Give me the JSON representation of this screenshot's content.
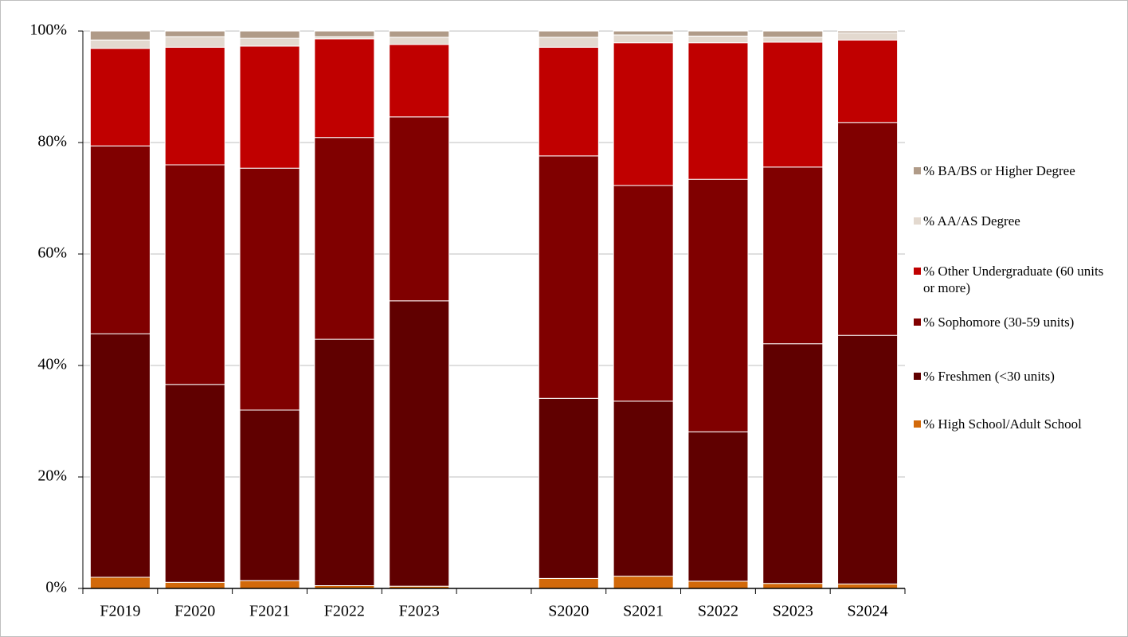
{
  "chart_data": {
    "type": "stacked_bar",
    "categories": [
      "F2019",
      "F2020",
      "F2021",
      "F2022",
      "F2023",
      null,
      "S2020",
      "S2021",
      "S2022",
      "S2023",
      "S2024"
    ],
    "series": [
      {
        "name": "% High School/Adult School",
        "color": "#d2690a",
        "values": [
          2.0,
          1.1,
          1.4,
          0.5,
          0.4,
          null,
          1.8,
          2.2,
          1.3,
          0.9,
          0.8
        ]
      },
      {
        "name": "% Freshmen (<30 units)",
        "color": "#600000",
        "values": [
          43.7,
          35.5,
          30.6,
          44.2,
          51.2,
          null,
          32.3,
          31.4,
          26.8,
          43.0,
          44.6
        ]
      },
      {
        "name": "% Sophomore (30-59 units)",
        "color": "#800000",
        "values": [
          33.7,
          39.4,
          43.4,
          36.2,
          33.0,
          null,
          43.5,
          38.7,
          45.3,
          31.7,
          38.2
        ]
      },
      {
        "name": "% Other Undergraduate (60 units or more)",
        "color": "#c00000",
        "values": [
          17.5,
          21.1,
          21.9,
          17.7,
          13.0,
          null,
          19.5,
          25.6,
          24.5,
          22.4,
          14.8
        ]
      },
      {
        "name": "% AA/AS Degree",
        "color": "#e3d9cf",
        "values": [
          1.5,
          1.9,
          1.4,
          0.4,
          1.3,
          null,
          1.8,
          1.4,
          1.2,
          0.9,
          1.3
        ]
      },
      {
        "name": "% BA/BS or Higher Degree",
        "color": "#b09b88",
        "values": [
          1.6,
          1.0,
          1.3,
          1.0,
          1.1,
          null,
          1.1,
          0.7,
          0.9,
          1.1,
          0.3
        ]
      }
    ],
    "ylim": [
      0,
      100
    ],
    "yticks": [
      {
        "value": 0,
        "label": "0%"
      },
      {
        "value": 20,
        "label": "20%"
      },
      {
        "value": 40,
        "label": "40%"
      },
      {
        "value": 60,
        "label": "60%"
      },
      {
        "value": 80,
        "label": "80%"
      },
      {
        "value": 100,
        "label": "100%"
      }
    ],
    "grid": true,
    "legend": "right"
  }
}
